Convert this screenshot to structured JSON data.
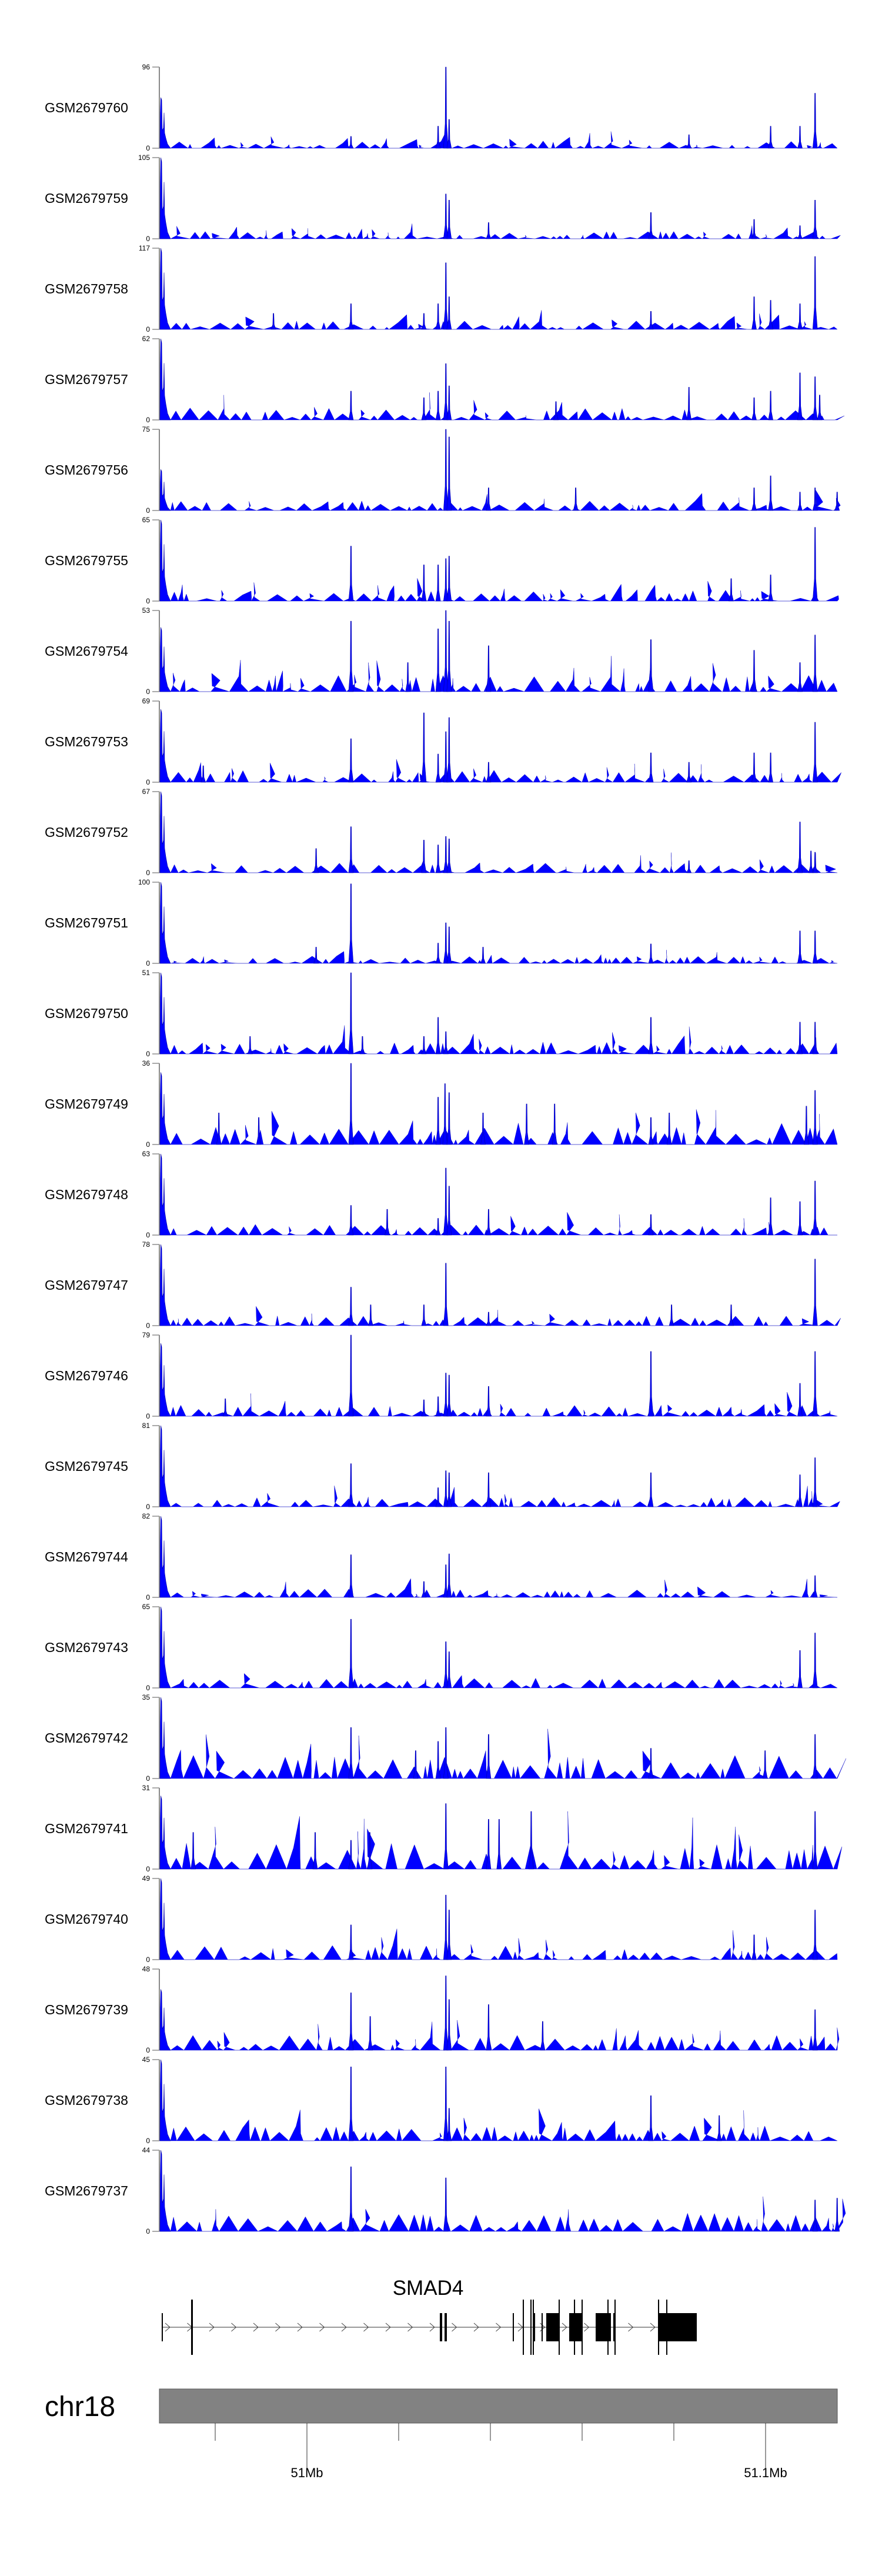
{
  "chart_data": {
    "type": "area",
    "title": "",
    "xlabel": "",
    "chromosome": "chr18",
    "xlim_mb": [
      50.96782,
      51.11564
    ],
    "axis_ticks_mb": [
      50.98,
      51.0,
      51.02,
      51.04,
      51.06,
      51.08,
      51.1
    ],
    "axis_labels": [
      {
        "mb": 51.0,
        "label": "51Mb"
      },
      {
        "mb": 51.1,
        "label": "51.1Mb"
      }
    ],
    "ymin_label": "0",
    "fill_color": "#0000FF",
    "gene": {
      "name": "SMAD4",
      "start_mb": 50.96833,
      "end_mb": 51.085,
      "strand": "+",
      "exons": [
        [
          50.96833,
          50.96846,
          "block"
        ],
        [
          50.97474,
          50.97513,
          "tall"
        ],
        [
          51.02897,
          51.02949,
          "block"
        ],
        [
          51.03,
          51.03051,
          "block"
        ],
        [
          51.04487,
          51.045,
          "block"
        ],
        [
          51.04705,
          51.04731,
          "tall"
        ],
        [
          51.04872,
          51.04885,
          "tall"
        ],
        [
          51.04923,
          51.04936,
          "tall"
        ],
        [
          51.04949,
          51.04975,
          "block"
        ],
        [
          51.05115,
          51.05141,
          "block"
        ],
        [
          51.05218,
          51.05487,
          "block"
        ],
        [
          51.05487,
          51.055,
          "tall"
        ],
        [
          51.05718,
          51.06013,
          "block"
        ],
        [
          51.05821,
          51.05834,
          "tall"
        ],
        [
          51.05987,
          51.06,
          "tall"
        ],
        [
          51.06295,
          51.06628,
          "block"
        ],
        [
          51.06551,
          51.06564,
          "tall"
        ],
        [
          51.06679,
          51.06692,
          "block"
        ],
        [
          51.06705,
          51.06718,
          "tall"
        ],
        [
          51.07654,
          51.085,
          "block"
        ],
        [
          51.07654,
          51.07667,
          "tall"
        ],
        [
          51.07833,
          51.07846,
          "tall"
        ]
      ]
    },
    "tracks": [
      {
        "name": "GSM2679760",
        "ymax": 96,
        "peaks": [
          [
            50.9686,
            60
          ],
          [
            51.0096,
            14
          ],
          [
            51.0286,
            26
          ],
          [
            51.0303,
            96
          ],
          [
            51.031,
            34
          ],
          [
            51.0833,
            16
          ],
          [
            51.1011,
            26
          ],
          [
            51.1075,
            26
          ],
          [
            51.1108,
            65
          ]
        ]
      },
      {
        "name": "GSM2679759",
        "ymax": 105,
        "peaks": [
          [
            50.9686,
            105
          ],
          [
            51.0303,
            58
          ],
          [
            51.031,
            50
          ],
          [
            51.0396,
            21
          ],
          [
            51.075,
            34
          ],
          [
            51.0975,
            25
          ],
          [
            51.1075,
            17
          ],
          [
            51.1108,
            50
          ]
        ]
      },
      {
        "name": "GSM2679758",
        "ymax": 117,
        "peaks": [
          [
            50.9686,
            117
          ],
          [
            50.9927,
            23
          ],
          [
            51.0096,
            37
          ],
          [
            51.0255,
            23
          ],
          [
            51.0286,
            37
          ],
          [
            51.0303,
            96
          ],
          [
            51.031,
            47
          ],
          [
            51.075,
            26
          ],
          [
            51.0975,
            47
          ],
          [
            51.1011,
            42
          ],
          [
            51.1075,
            37
          ],
          [
            51.1108,
            105
          ]
        ]
      },
      {
        "name": "GSM2679757",
        "ymax": 62,
        "peaks": [
          [
            50.9686,
            62
          ],
          [
            51.0096,
            22
          ],
          [
            51.0255,
            17
          ],
          [
            51.0286,
            22
          ],
          [
            51.0303,
            43
          ],
          [
            51.031,
            26
          ],
          [
            51.0543,
            14
          ],
          [
            51.0833,
            25
          ],
          [
            51.0975,
            17
          ],
          [
            51.1011,
            22
          ],
          [
            51.1075,
            36
          ],
          [
            51.1108,
            33
          ],
          [
            51.1118,
            19
          ]
        ]
      },
      {
        "name": "GSM2679756",
        "ymax": 75,
        "peaks": [
          [
            50.9686,
            38
          ],
          [
            51.0303,
            75
          ],
          [
            51.031,
            68
          ],
          [
            51.0396,
            21
          ],
          [
            51.0586,
            21
          ],
          [
            51.0975,
            21
          ],
          [
            51.1011,
            32
          ],
          [
            51.1075,
            17
          ],
          [
            51.1108,
            21
          ],
          [
            51.1156,
            17
          ]
        ]
      },
      {
        "name": "GSM2679755",
        "ymax": 65,
        "peaks": [
          [
            50.9686,
            65
          ],
          [
            51.0096,
            44
          ],
          [
            51.0255,
            29
          ],
          [
            51.0286,
            29
          ],
          [
            51.0303,
            34
          ],
          [
            51.031,
            36
          ],
          [
            51.0925,
            18
          ],
          [
            51.1011,
            21
          ],
          [
            51.1108,
            59
          ]
        ]
      },
      {
        "name": "GSM2679754",
        "ymax": 53,
        "peaks": [
          [
            50.9686,
            42
          ],
          [
            51.0096,
            46
          ],
          [
            51.022,
            19
          ],
          [
            51.0286,
            41
          ],
          [
            51.0303,
            53
          ],
          [
            51.031,
            46
          ],
          [
            51.0396,
            30
          ],
          [
            51.075,
            34
          ],
          [
            51.0975,
            27
          ],
          [
            51.1075,
            19
          ],
          [
            51.1108,
            37
          ]
        ]
      },
      {
        "name": "GSM2679753",
        "ymax": 69,
        "peaks": [
          [
            50.9686,
            62
          ],
          [
            50.9774,
            14
          ],
          [
            51.0096,
            37
          ],
          [
            51.0255,
            59
          ],
          [
            51.0286,
            24
          ],
          [
            51.0303,
            43
          ],
          [
            51.031,
            55
          ],
          [
            51.0396,
            17
          ],
          [
            51.075,
            25
          ],
          [
            51.0833,
            17
          ],
          [
            51.0975,
            25
          ],
          [
            51.1011,
            25
          ],
          [
            51.1108,
            51
          ]
        ]
      },
      {
        "name": "GSM2679752",
        "ymax": 67,
        "peaks": [
          [
            50.9686,
            67
          ],
          [
            51.002,
            20
          ],
          [
            51.0096,
            38
          ],
          [
            51.0255,
            27
          ],
          [
            51.0286,
            23
          ],
          [
            51.0303,
            30
          ],
          [
            51.031,
            28
          ],
          [
            51.0833,
            10
          ],
          [
            51.1075,
            42
          ],
          [
            51.1099,
            18
          ],
          [
            51.1108,
            17
          ]
        ]
      },
      {
        "name": "GSM2679751",
        "ymax": 100,
        "peaks": [
          [
            50.9686,
            100
          ],
          [
            51.002,
            20
          ],
          [
            51.0096,
            98
          ],
          [
            51.0286,
            25
          ],
          [
            51.0303,
            50
          ],
          [
            51.031,
            45
          ],
          [
            51.0384,
            20
          ],
          [
            51.075,
            24
          ],
          [
            51.1075,
            40
          ],
          [
            51.1108,
            40
          ]
        ]
      },
      {
        "name": "GSM2679750",
        "ymax": 51,
        "peaks": [
          [
            50.9686,
            51
          ],
          [
            50.9876,
            11
          ],
          [
            51.0096,
            51
          ],
          [
            51.0121,
            11
          ],
          [
            51.0255,
            11
          ],
          [
            51.0286,
            23
          ],
          [
            51.0303,
            14
          ],
          [
            51.075,
            23
          ],
          [
            51.1075,
            20
          ],
          [
            51.1108,
            20
          ]
        ]
      },
      {
        "name": "GSM2679749",
        "ymax": 36,
        "peaks": [
          [
            50.9686,
            32
          ],
          [
            50.9808,
            14
          ],
          [
            50.9895,
            12
          ],
          [
            51.0096,
            36
          ],
          [
            51.0286,
            21
          ],
          [
            51.0301,
            27
          ],
          [
            51.031,
            23
          ],
          [
            51.0384,
            14
          ],
          [
            51.0479,
            18
          ],
          [
            51.054,
            18
          ],
          [
            51.075,
            12
          ],
          [
            51.079,
            14
          ],
          [
            51.1089,
            17
          ],
          [
            51.1108,
            24
          ]
        ]
      },
      {
        "name": "GSM2679748",
        "ymax": 63,
        "peaks": [
          [
            50.9686,
            63
          ],
          [
            51.0096,
            23
          ],
          [
            51.0175,
            20
          ],
          [
            51.0286,
            13
          ],
          [
            51.0303,
            52
          ],
          [
            51.031,
            38
          ],
          [
            51.0396,
            20
          ],
          [
            51.075,
            16
          ],
          [
            51.1011,
            29
          ],
          [
            51.1075,
            26
          ],
          [
            51.1108,
            42
          ]
        ]
      },
      {
        "name": "GSM2679747",
        "ymax": 78,
        "peaks": [
          [
            50.9686,
            78
          ],
          [
            51.0096,
            37
          ],
          [
            51.0139,
            20
          ],
          [
            51.0255,
            20
          ],
          [
            51.0303,
            60
          ],
          [
            51.0396,
            13
          ],
          [
            51.0795,
            20
          ],
          [
            51.0925,
            20
          ],
          [
            51.1108,
            64
          ]
        ]
      },
      {
        "name": "GSM2679746",
        "ymax": 79,
        "peaks": [
          [
            50.9686,
            71
          ],
          [
            50.9822,
            17
          ],
          [
            51.0096,
            79
          ],
          [
            51.0255,
            16
          ],
          [
            51.0286,
            19
          ],
          [
            51.0303,
            42
          ],
          [
            51.031,
            40
          ],
          [
            51.0396,
            29
          ],
          [
            51.075,
            63
          ],
          [
            51.1075,
            32
          ],
          [
            51.1108,
            63
          ]
        ]
      },
      {
        "name": "GSM2679745",
        "ymax": 81,
        "peaks": [
          [
            50.9686,
            81
          ],
          [
            51.0096,
            43
          ],
          [
            51.0286,
            19
          ],
          [
            51.0303,
            36
          ],
          [
            51.031,
            34
          ],
          [
            51.0396,
            34
          ],
          [
            51.075,
            34
          ],
          [
            51.1075,
            32
          ],
          [
            51.1108,
            49
          ]
        ]
      },
      {
        "name": "GSM2679744",
        "ymax": 82,
        "peaks": [
          [
            50.9686,
            82
          ],
          [
            51.0096,
            43
          ],
          [
            51.0255,
            16
          ],
          [
            51.0303,
            33
          ],
          [
            51.031,
            44
          ],
          [
            51.1108,
            22
          ]
        ]
      },
      {
        "name": "GSM2679743",
        "ymax": 65,
        "peaks": [
          [
            50.9686,
            65
          ],
          [
            51.0096,
            55
          ],
          [
            51.0303,
            37
          ],
          [
            51.031,
            29
          ],
          [
            51.1075,
            30
          ],
          [
            51.1108,
            44
          ]
        ]
      },
      {
        "name": "GSM2679742",
        "ymax": 35,
        "peaks": [
          [
            50.9686,
            35
          ],
          [
            51.0096,
            22
          ],
          [
            51.0237,
            12
          ],
          [
            51.0286,
            16
          ],
          [
            51.0303,
            22
          ],
          [
            51.0396,
            19
          ],
          [
            51.075,
            13
          ],
          [
            51.0999,
            12
          ],
          [
            51.1108,
            19
          ]
        ]
      },
      {
        "name": "GSM2679741",
        "ymax": 31,
        "peaks": [
          [
            50.9686,
            28
          ],
          [
            50.9752,
            14
          ],
          [
            51.0018,
            14
          ],
          [
            51.0096,
            11
          ],
          [
            51.0137,
            14
          ],
          [
            51.0303,
            25
          ],
          [
            51.0396,
            19
          ],
          [
            51.0419,
            19
          ],
          [
            51.0489,
            22
          ],
          [
            51.1108,
            22
          ]
        ]
      },
      {
        "name": "GSM2679740",
        "ymax": 49,
        "peaks": [
          [
            50.9686,
            49
          ],
          [
            51.0096,
            21
          ],
          [
            51.0303,
            39
          ],
          [
            51.031,
            30
          ],
          [
            51.0975,
            15
          ],
          [
            51.1108,
            30
          ]
        ]
      },
      {
        "name": "GSM2679739",
        "ymax": 48,
        "peaks": [
          [
            50.9686,
            36
          ],
          [
            51.0096,
            34
          ],
          [
            51.0138,
            20
          ],
          [
            51.0303,
            44
          ],
          [
            51.031,
            30
          ],
          [
            51.0396,
            27
          ],
          [
            51.0514,
            17
          ],
          [
            51.1108,
            24
          ]
        ]
      },
      {
        "name": "GSM2679738",
        "ymax": 45,
        "peaks": [
          [
            50.9686,
            45
          ],
          [
            51.0096,
            41
          ],
          [
            51.0303,
            41
          ],
          [
            51.031,
            18
          ],
          [
            51.075,
            25
          ],
          [
            51.0899,
            14
          ]
        ]
      },
      {
        "name": "GSM2679737",
        "ymax": 44,
        "peaks": [
          [
            50.9686,
            44
          ],
          [
            51.0096,
            35
          ],
          [
            51.0303,
            29
          ],
          [
            51.1108,
            17
          ],
          [
            51.1156,
            18
          ]
        ]
      }
    ]
  }
}
